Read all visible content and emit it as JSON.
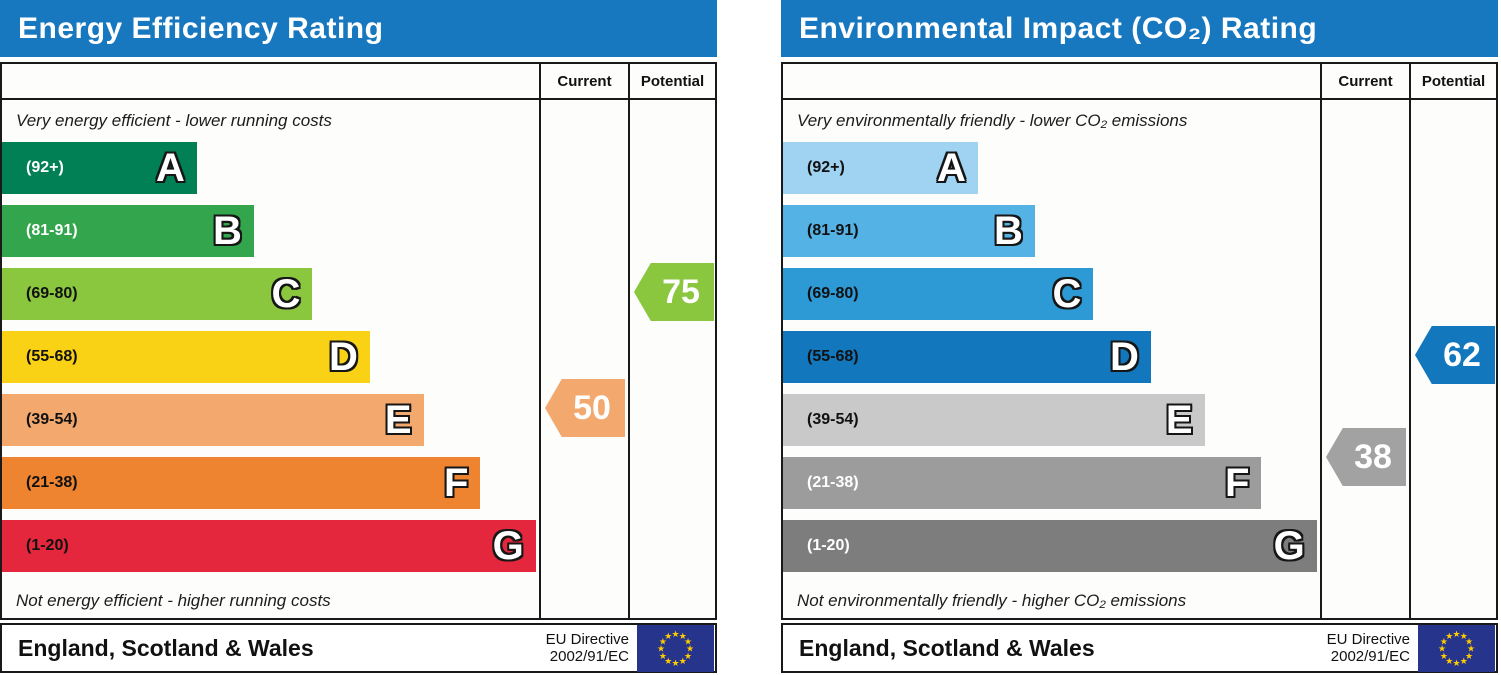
{
  "chart_data": [
    {
      "type": "bar",
      "title": "Energy Efficiency Rating",
      "header_color": "#1878bf",
      "columns": {
        "current": "Current",
        "potential": "Potential"
      },
      "top_caption": "Very energy efficient - lower running costs",
      "bottom_caption": "Not energy efficient - higher running costs",
      "bands": [
        {
          "label": "(92+)",
          "letter": "A",
          "min": 92,
          "max": 100,
          "width_pct": 36.3,
          "color": "#008054",
          "label_color": "#ffffff"
        },
        {
          "label": "(81-91)",
          "letter": "B",
          "min": 81,
          "max": 91,
          "width_pct": 46.9,
          "color": "#33a54d",
          "label_color": "#ffffff"
        },
        {
          "label": "(69-80)",
          "letter": "C",
          "min": 69,
          "max": 80,
          "width_pct": 57.8,
          "color": "#8bc63f",
          "label_color": "#111111"
        },
        {
          "label": "(55-68)",
          "letter": "D",
          "min": 55,
          "max": 68,
          "width_pct": 68.5,
          "color": "#f9d216",
          "label_color": "#111111"
        },
        {
          "label": "(39-54)",
          "letter": "E",
          "min": 39,
          "max": 54,
          "width_pct": 78.5,
          "color": "#f3a86e",
          "label_color": "#111111"
        },
        {
          "label": "(21-38)",
          "letter": "F",
          "min": 21,
          "max": 38,
          "width_pct": 89.1,
          "color": "#ee8430",
          "label_color": "#111111"
        },
        {
          "label": "(1-20)",
          "letter": "G",
          "min": 1,
          "max": 20,
          "width_pct": 99.4,
          "color": "#e4273c",
          "label_color": "#111111"
        }
      ],
      "current": {
        "value": 50,
        "color": "#f3a86e"
      },
      "potential": {
        "value": 75,
        "color": "#8bc63f"
      },
      "footer": {
        "region": "England, Scotland & Wales",
        "directive_line1": "EU Directive",
        "directive_line2": "2002/91/EC",
        "flag_bg": "#27348b",
        "flag_star": "#ffcc00"
      }
    },
    {
      "type": "bar",
      "title": "Environmental Impact (CO₂) Rating",
      "header_color": "#1878bf",
      "columns": {
        "current": "Current",
        "potential": "Potential"
      },
      "top_caption": "Very environmentally friendly - lower CO₂ emissions",
      "bottom_caption": "Not environmentally friendly - higher CO₂ emissions",
      "bands": [
        {
          "label": "(92+)",
          "letter": "A",
          "min": 92,
          "max": 100,
          "width_pct": 36.3,
          "color": "#a0d2f2",
          "label_color": "#111111"
        },
        {
          "label": "(81-91)",
          "letter": "B",
          "min": 81,
          "max": 91,
          "width_pct": 46.9,
          "color": "#55b2e4",
          "label_color": "#111111"
        },
        {
          "label": "(69-80)",
          "letter": "C",
          "min": 69,
          "max": 80,
          "width_pct": 57.8,
          "color": "#2d9ad6",
          "label_color": "#111111"
        },
        {
          "label": "(55-68)",
          "letter": "D",
          "min": 55,
          "max": 68,
          "width_pct": 68.5,
          "color": "#1277bd",
          "label_color": "#111111"
        },
        {
          "label": "(39-54)",
          "letter": "E",
          "min": 39,
          "max": 54,
          "width_pct": 78.5,
          "color": "#c9c9c9",
          "label_color": "#111111"
        },
        {
          "label": "(21-38)",
          "letter": "F",
          "min": 21,
          "max": 38,
          "width_pct": 89.1,
          "color": "#9c9c9c",
          "label_color": "#ffffff"
        },
        {
          "label": "(1-20)",
          "letter": "G",
          "min": 1,
          "max": 20,
          "width_pct": 99.4,
          "color": "#7d7d7d",
          "label_color": "#ffffff"
        }
      ],
      "current": {
        "value": 38,
        "color": "#a2a2a2"
      },
      "potential": {
        "value": 62,
        "color": "#1277bd"
      },
      "footer": {
        "region": "England, Scotland & Wales",
        "directive_line1": "EU Directive",
        "directive_line2": "2002/91/EC",
        "flag_bg": "#27348b",
        "flag_star": "#ffcc00"
      }
    }
  ]
}
